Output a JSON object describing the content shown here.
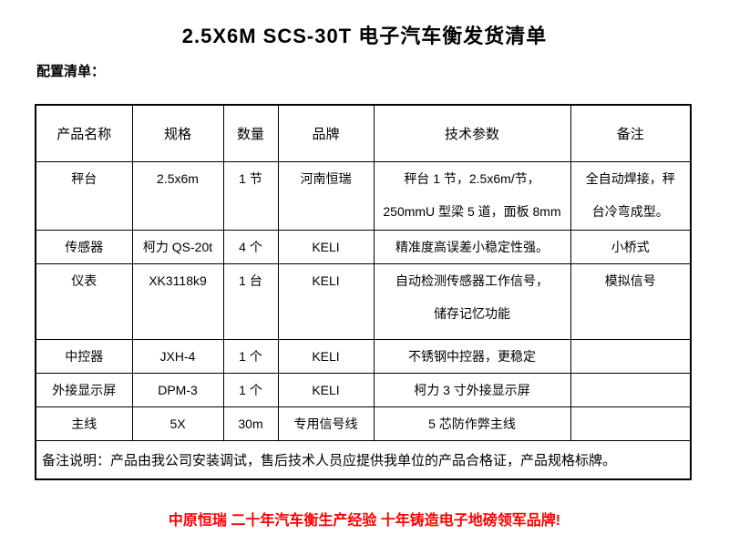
{
  "page": {
    "title": "2.5X6M SCS-30T 电子汽车衡发货清单",
    "subtitle": "配置清单：",
    "footer_slogan": "中原恒瑞 二十年汽车衡生产经验 十年铸造电子地磅领军品牌!",
    "colors": {
      "title_text": "#000000",
      "body_text": "#000000",
      "slogan_text": "#ff0000",
      "table_border": "#000000",
      "background": "#ffffff"
    }
  },
  "table": {
    "headers": [
      "产品名称",
      "规格",
      "数量",
      "品牌",
      "技术参数",
      "备注"
    ],
    "rows": [
      [
        "秤台",
        "2.5x6m",
        "1 节",
        "河南恒瑞",
        "秤台 1 节，2.5x6m/节，\n250mmU 型梁 5 道，面板 8mm",
        "全自动焊接，秤\n台冷弯成型。"
      ],
      [
        "传感器",
        "柯力 QS-20t",
        "4 个",
        "KELI",
        "精准度高误差小稳定性强。",
        "小桥式"
      ],
      [
        "仪表",
        "XK3118k9",
        "1 台",
        "KELI",
        "自动检测传感器工作信号，\n储存记忆功能",
        "模拟信号"
      ],
      [
        "中控器",
        "JXH-4",
        "1 个",
        "KELI",
        "不锈钢中控器，更稳定",
        ""
      ],
      [
        "外接显示屏",
        "DPM-3",
        "1 个",
        "KELI",
        "柯力 3 寸外接显示屏",
        ""
      ],
      [
        "主线",
        "5X",
        "30m",
        "专用信号线",
        "5 芯防作弊主线",
        ""
      ]
    ],
    "footer_note": "备注说明：产品由我公司安装调试，售后技术人员应提供我单位的产品合格证，产品规格标牌。"
  }
}
